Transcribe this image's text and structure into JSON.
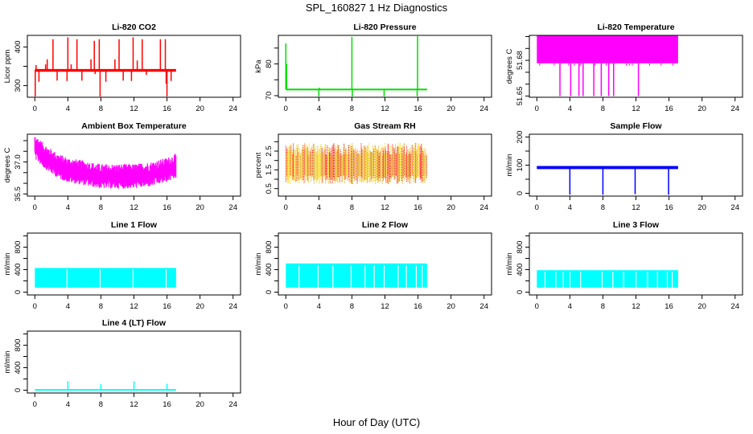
{
  "title": "SPL_160827  1 Hz Diagnostics",
  "xlabel": "Hour of Day (UTC)",
  "chart_data": [
    {
      "type": "line",
      "title": "Li-820 CO2",
      "ylabel": "Licor ppm",
      "color": "#ff0000",
      "xlim": [
        0,
        24
      ],
      "xticks": [
        0,
        4,
        8,
        12,
        16,
        20,
        24
      ],
      "ylim": [
        270,
        430
      ],
      "yticks": [
        300,
        350,
        400
      ],
      "ytick_labels": [
        "300",
        "",
        "400"
      ],
      "data_range_x": [
        0,
        17.1
      ],
      "baseline": 340,
      "band": [
        336,
        343
      ],
      "spikes": [
        {
          "x": 0.05,
          "y": 272
        },
        {
          "x": 0.15,
          "y": 353
        },
        {
          "x": 0.5,
          "y": 310
        },
        {
          "x": 1.3,
          "y": 355
        },
        {
          "x": 1.5,
          "y": 368
        },
        {
          "x": 2.2,
          "y": 420
        },
        {
          "x": 2.7,
          "y": 313
        },
        {
          "x": 3.9,
          "y": 312
        },
        {
          "x": 4.0,
          "y": 425
        },
        {
          "x": 4.4,
          "y": 355
        },
        {
          "x": 5.1,
          "y": 420
        },
        {
          "x": 5.7,
          "y": 313
        },
        {
          "x": 6.8,
          "y": 368
        },
        {
          "x": 7.2,
          "y": 416
        },
        {
          "x": 7.3,
          "y": 330
        },
        {
          "x": 7.8,
          "y": 420
        },
        {
          "x": 7.9,
          "y": 265
        },
        {
          "x": 8.6,
          "y": 310
        },
        {
          "x": 9.7,
          "y": 368
        },
        {
          "x": 10.2,
          "y": 420
        },
        {
          "x": 10.7,
          "y": 313
        },
        {
          "x": 11.7,
          "y": 312
        },
        {
          "x": 11.9,
          "y": 425
        },
        {
          "x": 12.4,
          "y": 365
        },
        {
          "x": 13.0,
          "y": 420
        },
        {
          "x": 13.5,
          "y": 328
        },
        {
          "x": 14.8,
          "y": 340
        },
        {
          "x": 15.2,
          "y": 420
        },
        {
          "x": 15.8,
          "y": 420
        },
        {
          "x": 15.9,
          "y": 305
        },
        {
          "x": 16.0,
          "y": 267
        },
        {
          "x": 16.5,
          "y": 312
        }
      ]
    },
    {
      "type": "line",
      "title": "Li-820 Pressure",
      "ylabel": "kPa",
      "color": "#00dd00",
      "xlim": [
        0,
        24
      ],
      "xticks": [
        0,
        4,
        8,
        12,
        16,
        20,
        24
      ],
      "ylim": [
        69.5,
        89
      ],
      "yticks": [
        70,
        75,
        80,
        85
      ],
      "ytick_labels": [
        "70",
        "",
        "80",
        ""
      ],
      "data_range_x": [
        0,
        17.1
      ],
      "baseline": 72.0,
      "band": [
        71.8,
        72.2
      ],
      "spikes": [
        {
          "x": 0.0,
          "y": 86.5
        },
        {
          "x": 0.1,
          "y": 80
        },
        {
          "x": 4.0,
          "y": 69.8
        },
        {
          "x": 4.05,
          "y": 72.5
        },
        {
          "x": 8.0,
          "y": 88.5
        },
        {
          "x": 8.05,
          "y": 69.6
        },
        {
          "x": 11.9,
          "y": 69.7
        },
        {
          "x": 15.95,
          "y": 88.8
        },
        {
          "x": 15.9,
          "y": 69.8
        }
      ]
    },
    {
      "type": "line",
      "title": "Li-820 Temperature",
      "ylabel": "degrees C",
      "color": "#ff00ff",
      "xlim": [
        0,
        24
      ],
      "xticks": [
        0,
        4,
        8,
        12,
        16,
        20,
        24
      ],
      "ylim": [
        51.649,
        51.701
      ],
      "yticks": [
        51.65,
        51.66,
        51.67,
        51.68,
        51.69,
        51.7
      ],
      "ytick_labels": [
        "51.65",
        "",
        "",
        "51.68",
        "",
        ""
      ],
      "data_range_x": [
        0,
        17.1
      ],
      "baseline": 51.69,
      "band": [
        51.6775,
        51.7015
      ],
      "spikes": [
        {
          "x": 2.8,
          "y": 51.65
        },
        {
          "x": 4.1,
          "y": 51.65
        },
        {
          "x": 5.1,
          "y": 51.65
        },
        {
          "x": 5.6,
          "y": 51.65
        },
        {
          "x": 6.9,
          "y": 51.65
        },
        {
          "x": 7.8,
          "y": 51.65
        },
        {
          "x": 8.7,
          "y": 51.65
        },
        {
          "x": 9.3,
          "y": 51.65
        },
        {
          "x": 12.3,
          "y": 51.65
        }
      ]
    },
    {
      "type": "line",
      "title": "Ambient Box Temperature",
      "ylabel": "degrees C",
      "color": "#ff00ff",
      "xlim": [
        0,
        24
      ],
      "xticks": [
        0,
        4,
        8,
        12,
        16,
        20,
        24
      ],
      "ylim": [
        35.4,
        38.3
      ],
      "yticks": [
        35.5,
        36.0,
        36.5,
        37.0,
        37.5,
        38.0
      ],
      "ytick_labels": [
        "35.5",
        "",
        "",
        "37.0",
        "",
        ""
      ],
      "data_range_x": [
        0,
        17.1
      ],
      "trend": [
        {
          "x": 0,
          "y": 37.7
        },
        {
          "x": 1,
          "y": 37.3
        },
        {
          "x": 2,
          "y": 37.0
        },
        {
          "x": 3,
          "y": 36.75
        },
        {
          "x": 4,
          "y": 36.6
        },
        {
          "x": 6,
          "y": 36.45
        },
        {
          "x": 8,
          "y": 36.3
        },
        {
          "x": 10,
          "y": 36.3
        },
        {
          "x": 12,
          "y": 36.3
        },
        {
          "x": 14,
          "y": 36.4
        },
        {
          "x": 16,
          "y": 36.6
        },
        {
          "x": 17.1,
          "y": 36.8
        }
      ],
      "amplitude": 0.55
    },
    {
      "type": "line",
      "title": "Gas Stream RH",
      "ylabel": "percent",
      "colors": [
        "#ff0000",
        "#ffd700",
        "#d4a000"
      ],
      "xlim": [
        0,
        24
      ],
      "xticks": [
        0,
        4,
        8,
        12,
        16,
        20,
        24
      ],
      "ylim": [
        0.1,
        3.4
      ],
      "yticks": [
        0.5,
        1.0,
        1.5,
        2.0,
        2.5,
        3.0
      ],
      "ytick_labels": [
        "0.5",
        "",
        "1.5",
        "",
        "2.5",
        ""
      ],
      "data_range_x": [
        0,
        17.1
      ],
      "center": 1.85,
      "amplitude": 1.0,
      "max": 3.3,
      "min": 0.15
    },
    {
      "type": "line",
      "title": "Sample Flow",
      "ylabel": "ml/min",
      "color": "#0000ff",
      "xlim": [
        0,
        24
      ],
      "xticks": [
        0,
        4,
        8,
        12,
        16,
        20,
        24
      ],
      "ylim": [
        -10,
        210
      ],
      "yticks": [
        0,
        50,
        100,
        150,
        200
      ],
      "ytick_labels": [
        "0",
        "",
        "100",
        "",
        "200"
      ],
      "data_range_x": [
        0,
        17.1
      ],
      "baseline": 92,
      "band": [
        86,
        97
      ],
      "spikes": [
        {
          "x": 4.0,
          "y": -5
        },
        {
          "x": 8.0,
          "y": -5
        },
        {
          "x": 11.9,
          "y": -3
        },
        {
          "x": 15.95,
          "y": -5
        }
      ]
    },
    {
      "type": "area",
      "title": "Line 1 Flow",
      "ylabel": "ml/min",
      "color": "#00ffff",
      "xlim": [
        0,
        24
      ],
      "xticks": [
        0,
        4,
        8,
        12,
        16,
        20,
        24
      ],
      "ylim": [
        -50,
        1050
      ],
      "yticks": [
        0,
        200,
        400,
        600,
        800,
        1000
      ],
      "ytick_labels": [
        "0",
        "",
        "400",
        "",
        "800",
        ""
      ],
      "data_range_x": [
        0,
        17.1
      ],
      "band": [
        80,
        430
      ],
      "gaps": [
        3.9,
        7.9,
        11.9,
        15.9
      ]
    },
    {
      "type": "area",
      "title": "Line 2 Flow",
      "ylabel": "ml/min",
      "color": "#00ffff",
      "xlim": [
        0,
        24
      ],
      "xticks": [
        0,
        4,
        8,
        12,
        16,
        20,
        24
      ],
      "ylim": [
        -50,
        1050
      ],
      "yticks": [
        0,
        200,
        400,
        600,
        800,
        1000
      ],
      "ytick_labels": [
        "0",
        "",
        "400",
        "",
        "800",
        ""
      ],
      "data_range_x": [
        0,
        17.1
      ],
      "band": [
        80,
        510
      ],
      "gaps": [
        1.6,
        3.9,
        5.7,
        7.9,
        9.6,
        10.7,
        11.9,
        13.6,
        14.6,
        15.8,
        16.5
      ]
    },
    {
      "type": "area",
      "title": "Line 3 Flow",
      "ylabel": "ml/min",
      "color": "#00ffff",
      "xlim": [
        0,
        24
      ],
      "xticks": [
        0,
        4,
        8,
        12,
        16,
        20,
        24
      ],
      "ylim": [
        -50,
        1050
      ],
      "yticks": [
        0,
        200,
        400,
        600,
        800,
        1000
      ],
      "ytick_labels": [
        "0",
        "",
        "400",
        "",
        "800",
        ""
      ],
      "data_range_x": [
        0,
        17.1
      ],
      "band": [
        80,
        390
      ],
      "gaps": [
        1.0,
        2.3,
        3.2,
        4.0,
        5.3,
        7.9,
        9.2,
        10.5,
        12.0,
        13.4,
        14.6,
        15.8,
        16.4
      ]
    },
    {
      "type": "line",
      "title": "Line 4 (LT) Flow",
      "ylabel": "ml/min",
      "color": "#00ffff",
      "xlim": [
        0,
        24
      ],
      "xticks": [
        0,
        4,
        8,
        12,
        16,
        20,
        24
      ],
      "ylim": [
        -50,
        1050
      ],
      "yticks": [
        0,
        200,
        400,
        600,
        800,
        1000
      ],
      "ytick_labels": [
        "0",
        "",
        "400",
        "",
        "800",
        ""
      ],
      "data_range_x": [
        0,
        17.1
      ],
      "baseline": 10,
      "band": [
        0,
        20
      ],
      "spikes": [
        {
          "x": 4.0,
          "y": 160
        },
        {
          "x": 8.0,
          "y": 110
        },
        {
          "x": 12.0,
          "y": 160
        },
        {
          "x": 16.0,
          "y": 115
        }
      ]
    }
  ]
}
